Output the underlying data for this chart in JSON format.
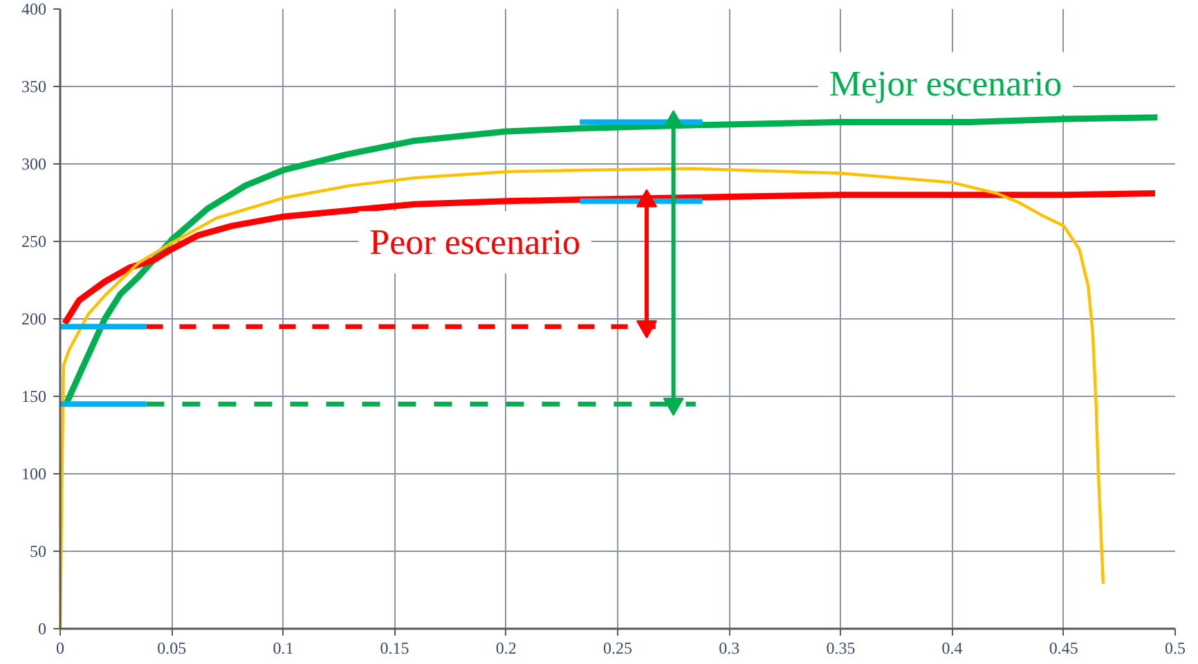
{
  "chart_data": {
    "type": "line",
    "xlim": [
      0,
      0.5
    ],
    "xticks": [
      0,
      0.05,
      0.1,
      0.15,
      0.2,
      0.25,
      0.3,
      0.35,
      0.4,
      0.45,
      0.5
    ],
    "ylim": [
      0,
      400
    ],
    "yticks": [
      0,
      50,
      100,
      150,
      200,
      250,
      300,
      350,
      400
    ],
    "grid": true,
    "line_style": "solid",
    "series": [
      {
        "name": "Mejor escenario",
        "color": "#00b050",
        "x": [
          0.003,
          0.0105,
          0.02,
          0.027,
          0.035,
          0.05,
          0.066,
          0.083,
          0.1,
          0.128,
          0.159,
          0.2,
          0.234,
          0.283,
          0.35,
          0.408,
          0.45,
          0.492
        ],
        "values": [
          146,
          170,
          200,
          216,
          227,
          251,
          271,
          286,
          296,
          306,
          315,
          321,
          323,
          325,
          327,
          327,
          329,
          330
        ]
      },
      {
        "name": "Peor escenario",
        "color": "#ff0000",
        "x": [
          0.002,
          0.0085,
          0.02,
          0.031,
          0.042,
          0.05,
          0.062,
          0.077,
          0.1,
          0.159,
          0.2,
          0.234,
          0.308,
          0.35,
          0.4,
          0.45,
          0.491
        ],
        "values": [
          197,
          212,
          224,
          233,
          238,
          245,
          254,
          260,
          266,
          274,
          276,
          277,
          279,
          280,
          280,
          280,
          281
        ]
      },
      {
        "color": "#ffc000",
        "x": [
          0,
          0.001,
          0.0015,
          0.004,
          0.0126,
          0.02,
          0.035,
          0.05,
          0.07,
          0.1,
          0.13,
          0.159,
          0.2,
          0.234,
          0.283,
          0.35,
          0.4,
          0.42,
          0.43,
          0.44,
          0.45,
          0.457,
          0.461,
          0.463,
          0.4645,
          0.4655,
          0.4677
        ],
        "values": [
          0,
          120,
          170,
          180,
          203,
          215,
          236,
          249,
          265,
          278,
          286,
          291,
          295,
          296,
          297,
          294,
          288,
          281,
          275,
          267,
          260,
          245,
          221,
          191,
          146,
          102,
          29
        ]
      },
      {
        "color": "#ff0000",
        "x": [
          0.0386,
          0.267
        ],
        "values": [
          195,
          195
        ],
        "line_style": "dashed"
      },
      {
        "color": "#00b050",
        "x": [
          0.0386,
          0.285
        ],
        "values": [
          145,
          145
        ],
        "line_style": "dashed"
      },
      {
        "color": "#00b0f0",
        "x": [
          0,
          0.0386
        ],
        "values": [
          195,
          195
        ]
      },
      {
        "color": "#00b0f0",
        "x": [
          0,
          0.0386
        ],
        "values": [
          145,
          145
        ]
      },
      {
        "color": "#00b0f0",
        "x": [
          0.233,
          0.288
        ],
        "values": [
          327,
          327
        ]
      },
      {
        "color": "#00b0f0",
        "x": [
          0.233,
          0.288
        ],
        "values": [
          276,
          276
        ]
      },
      {
        "color": "#ff0000",
        "x": [
          0.263,
          0.263
        ],
        "values": [
          195,
          276
        ],
        "marker": "triangle"
      },
      {
        "color": "#00b050",
        "x": [
          0.275,
          0.275
        ],
        "values": [
          145,
          327
        ],
        "marker": "triangle"
      }
    ]
  }
}
